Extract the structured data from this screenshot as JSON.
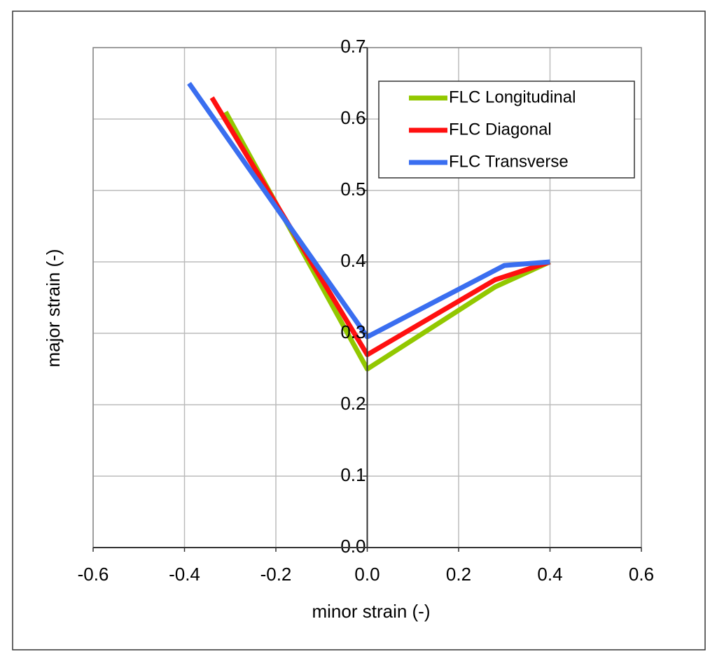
{
  "chart_data": {
    "type": "line",
    "x_label": "minor strain  (-)",
    "y_label": "major strain (-)",
    "xlim": [
      -0.6,
      0.6
    ],
    "xticks": [
      -0.6,
      -0.4,
      -0.2,
      {
        "value": 0,
        "label": "0.0"
      },
      0.2,
      0.4,
      0.6
    ],
    "ylim": [
      0,
      0.7
    ],
    "yticks": [
      {
        "value": 0,
        "label": "0.0"
      },
      0.1,
      0.2,
      0.3,
      0.4,
      0.5,
      0.6,
      0.7
    ],
    "grid": true,
    "legend": "upper right",
    "series": [
      {
        "name": "FLC Longitudinal",
        "color": "#92c800",
        "x": [
          -0.31,
          0,
          0.28,
          0.4
        ],
        "values": [
          0.61,
          0.25,
          0.365,
          0.4
        ]
      },
      {
        "name": "FLC Diagonal",
        "color": "#ff1010",
        "x": [
          -0.34,
          0,
          0.28,
          0.4
        ],
        "values": [
          0.63,
          0.27,
          0.375,
          0.4
        ]
      },
      {
        "name": "FLC Transverse",
        "color": "#3a6ef0",
        "x": [
          -0.39,
          0,
          0.3,
          0.4
        ],
        "values": [
          0.65,
          0.295,
          0.395,
          0.4
        ]
      }
    ]
  }
}
